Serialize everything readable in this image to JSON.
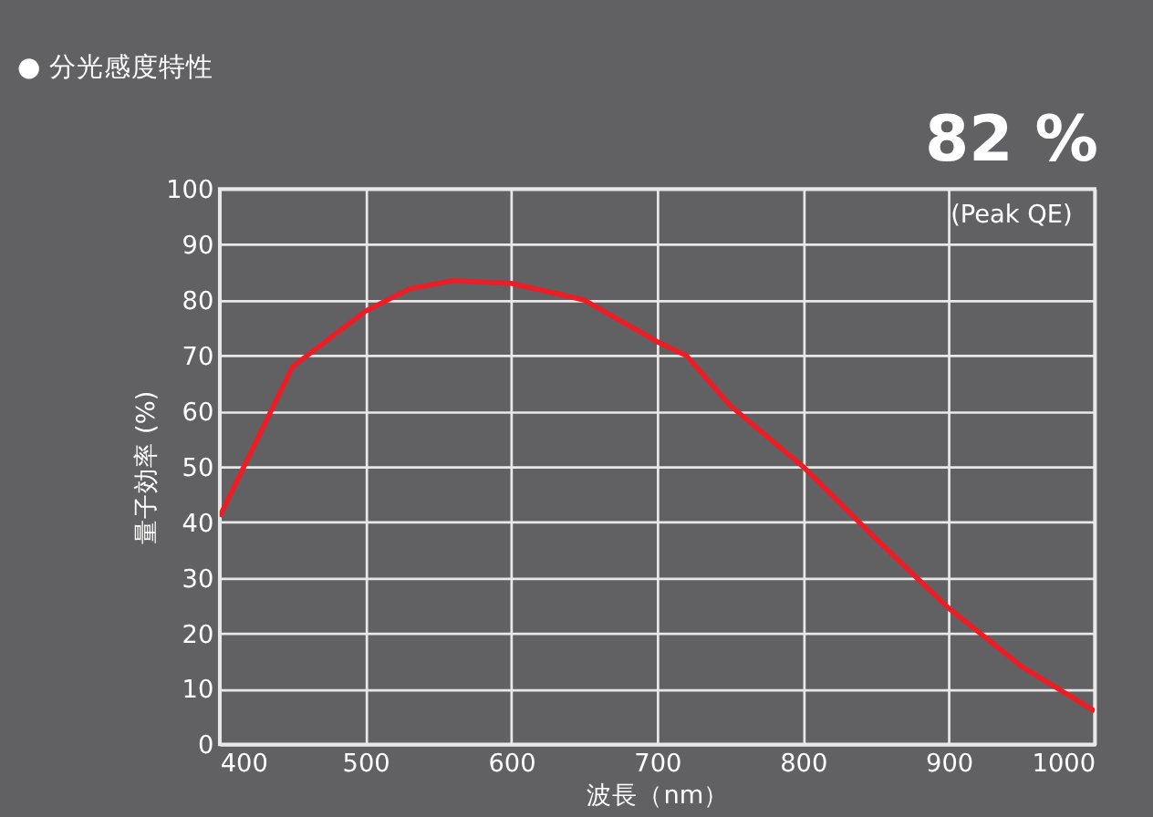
{
  "chart_data": {
    "type": "line",
    "title": "● 分光感度特性",
    "xlabel": "波長（nm）",
    "ylabel": "量子効率 (%)",
    "x": [
      400,
      450,
      500,
      530,
      560,
      600,
      650,
      700,
      720,
      750,
      800,
      850,
      900,
      950,
      1000
    ],
    "series": [
      {
        "color": "#ee1c25",
        "values": [
          41,
          68,
          78,
          82,
          83.5,
          83,
          80,
          72.5,
          70,
          61,
          50,
          37,
          24.5,
          14,
          6
        ]
      }
    ],
    "xlim": [
      400,
      1000
    ],
    "xticks": [
      400,
      500,
      600,
      700,
      800,
      900,
      1000
    ],
    "ylim": [
      0,
      100
    ],
    "yticks": [
      0,
      10,
      20,
      30,
      40,
      50,
      60,
      70,
      80,
      90,
      100
    ],
    "grid": true,
    "marker": "none",
    "line_style": "solid",
    "annotations": [
      "82 %",
      "(Peak QE)"
    ]
  }
}
